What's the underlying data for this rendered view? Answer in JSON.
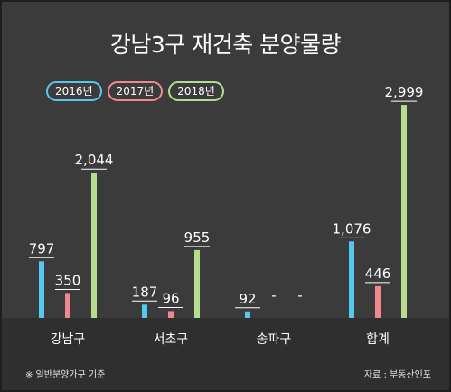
{
  "title": "강남3구 재건축 분양물량",
  "legend": [
    "2016년",
    "2017년",
    "2018년"
  ],
  "colors": {
    "2016년": "#55c8f0",
    "2017년": "#f0888d",
    "2018년": "#b5dc8f",
    "background": "#3b3b3b"
  },
  "footer": {
    "note": "※ 일반분양가구 기준",
    "source": "자료 : 부동산인포"
  },
  "chart_data": {
    "type": "bar",
    "title": "강남3구 재건축 분양물량",
    "categories": [
      "강남구",
      "서초구",
      "송파구",
      "합계"
    ],
    "series": [
      {
        "name": "2016년",
        "values": [
          797,
          187,
          92,
          1076
        ],
        "labels": [
          "797",
          "187",
          "92",
          "1,076"
        ]
      },
      {
        "name": "2017년",
        "values": [
          350,
          96,
          null,
          446
        ],
        "labels": [
          "350",
          "96",
          "-",
          "446"
        ]
      },
      {
        "name": "2018년",
        "values": [
          2044,
          955,
          null,
          2999
        ],
        "labels": [
          "2,044",
          "955",
          "-",
          "2,999"
        ]
      }
    ],
    "ylim": [
      0,
      3000
    ],
    "legend_position": "top-left",
    "grid": false
  }
}
